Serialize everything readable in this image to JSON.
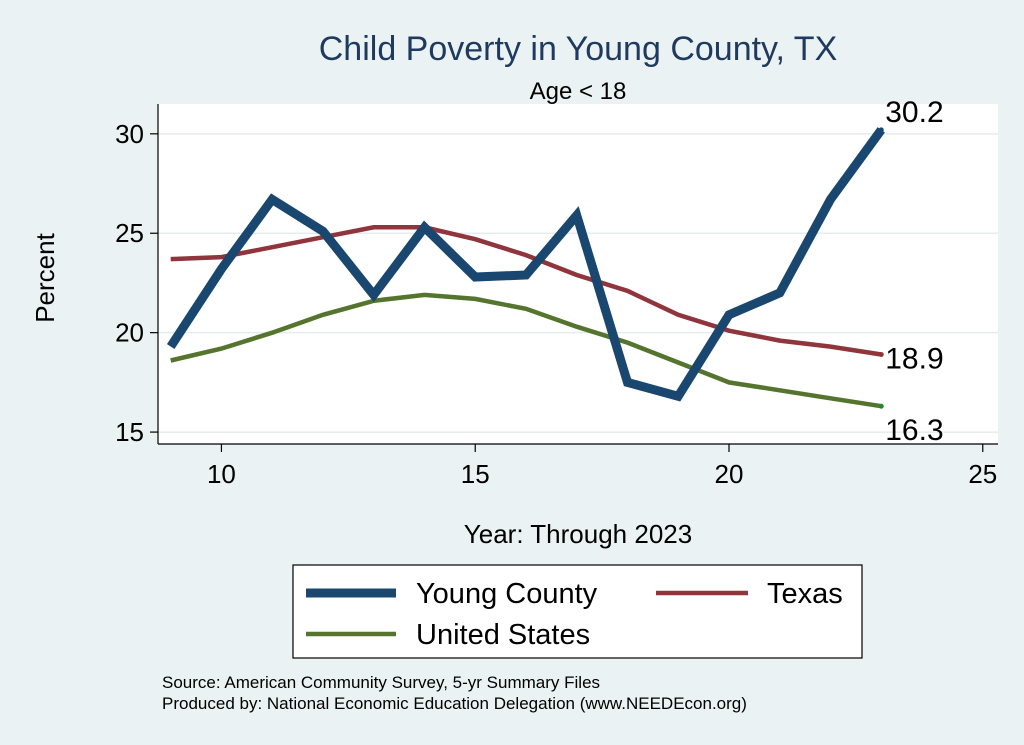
{
  "chart_data": {
    "type": "line",
    "title": "Child Poverty in Young County, TX",
    "subtitle": "Age < 18",
    "xlabel": "Year: Through 2023",
    "ylabel": "Percent",
    "xlim": [
      8.75,
      25.3
    ],
    "ylim": [
      14.4,
      31.5
    ],
    "xticks": [
      10,
      15,
      20,
      25
    ],
    "yticks": [
      15,
      20,
      25,
      30
    ],
    "grid": true,
    "legend_position": "bottom",
    "series": [
      {
        "name": "Young County",
        "color": "#1a476f",
        "x": [
          9,
          10,
          11,
          12,
          13,
          14,
          15,
          16,
          17,
          18,
          19,
          20,
          21,
          22,
          23
        ],
        "y": [
          19.3,
          23.2,
          26.7,
          25.1,
          21.9,
          25.3,
          22.8,
          22.9,
          25.9,
          17.5,
          16.8,
          20.9,
          22.0,
          26.7,
          30.2
        ],
        "end_label": "30.2"
      },
      {
        "name": "Texas",
        "color": "#90353b",
        "x": [
          9,
          10,
          11,
          12,
          13,
          14,
          15,
          16,
          17,
          18,
          19,
          20,
          21,
          22,
          23
        ],
        "y": [
          23.7,
          23.8,
          24.3,
          24.8,
          25.3,
          25.3,
          24.7,
          23.9,
          22.9,
          22.1,
          20.9,
          20.1,
          19.6,
          19.3,
          18.9
        ],
        "end_label": "18.9"
      },
      {
        "name": "United States",
        "color": "#55752f",
        "x": [
          9,
          10,
          11,
          12,
          13,
          14,
          15,
          16,
          17,
          18,
          19,
          20,
          21,
          22,
          23
        ],
        "y": [
          18.6,
          19.2,
          20.0,
          20.9,
          21.6,
          21.9,
          21.7,
          21.2,
          20.3,
          19.5,
          18.5,
          17.5,
          17.1,
          16.7,
          16.3
        ],
        "end_label": "16.3"
      }
    ],
    "footnotes": [
      "Source: American Community Survey, 5-yr Summary Files",
      "Produced by: National Economic Education Delegation (www.NEEDEcon.org)"
    ]
  }
}
